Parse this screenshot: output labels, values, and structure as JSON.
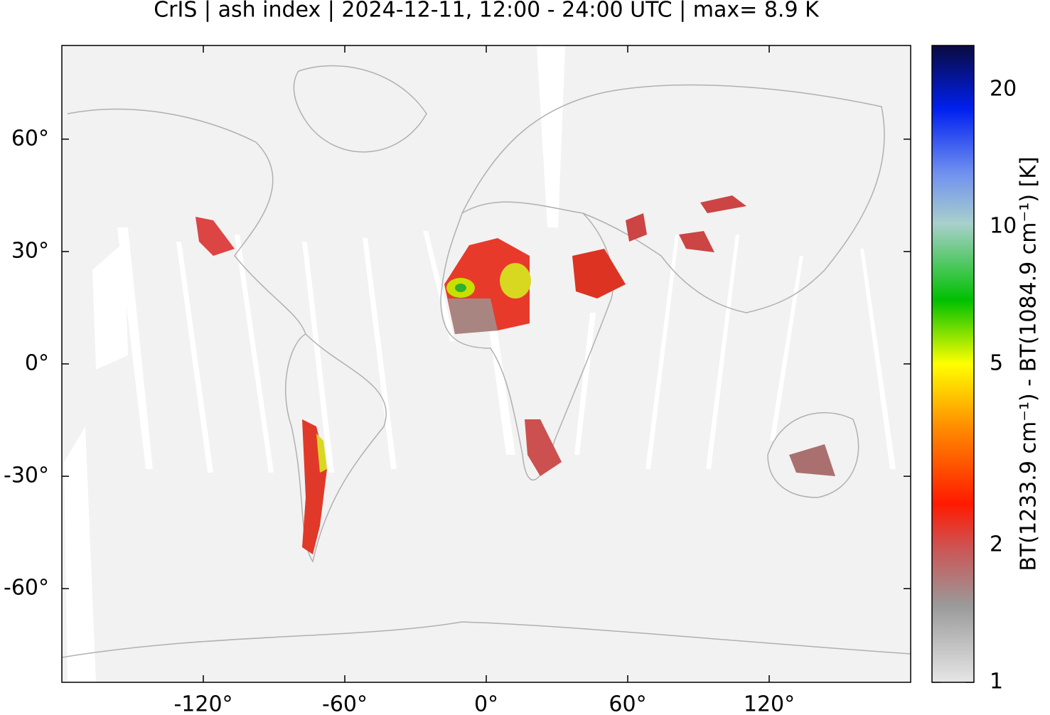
{
  "chart_data": {
    "type": "map",
    "title": "CrIS | ash index | 2024-12-11, 12:00 - 24:00 UTC | max= 8.9 K",
    "xlim": [
      -180,
      180
    ],
    "xticks": [
      {
        "value": -120,
        "label": "-120°"
      },
      {
        "value": -60,
        "label": "-60°"
      },
      {
        "value": 0,
        "label": "0°"
      },
      {
        "value": 60,
        "label": "60°"
      },
      {
        "value": 120,
        "label": "120°"
      }
    ],
    "ylim": [
      -85,
      85
    ],
    "yticks": [
      {
        "value": 60,
        "label": "60°"
      },
      {
        "value": 30,
        "label": "30°"
      },
      {
        "value": 0,
        "label": "0°"
      },
      {
        "value": -30,
        "label": "-30°"
      },
      {
        "value": -60,
        "label": "-60°"
      }
    ],
    "colorbar": {
      "label": "BT(1233.9 cm⁻¹) - BT(1084.9 cm⁻¹) [K]",
      "log_scale": true,
      "lim": [
        1,
        25
      ],
      "ticks": [
        1,
        2,
        5,
        10,
        20
      ]
    }
  }
}
